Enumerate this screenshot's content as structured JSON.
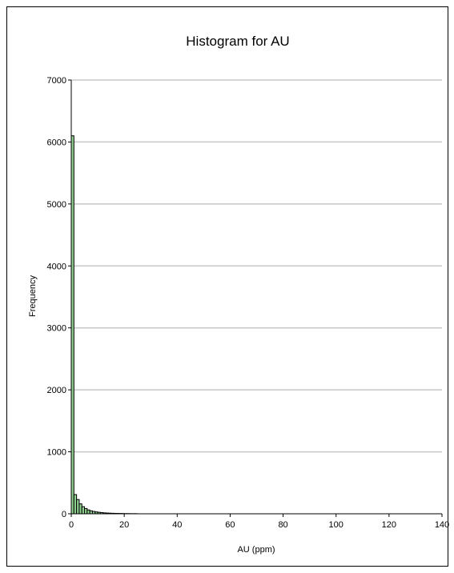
{
  "chart_data": {
    "type": "bar",
    "title": "Histogram for AU",
    "xlabel": "AU (ppm)",
    "ylabel": "Frequency",
    "xlim": [
      0,
      140
    ],
    "ylim": [
      0,
      7000
    ],
    "x_ticks": [
      0,
      20,
      40,
      60,
      80,
      100,
      120,
      140
    ],
    "y_ticks": [
      0,
      1000,
      2000,
      3000,
      4000,
      5000,
      6000,
      7000
    ],
    "grid": "horizontal",
    "legend": "none",
    "bin_width": 1,
    "bins": [
      {
        "x0": 0,
        "x1": 1,
        "count": 6100
      },
      {
        "x0": 1,
        "x1": 2,
        "count": 310
      },
      {
        "x0": 2,
        "x1": 3,
        "count": 230
      },
      {
        "x0": 3,
        "x1": 4,
        "count": 160
      },
      {
        "x0": 4,
        "x1": 5,
        "count": 115
      },
      {
        "x0": 5,
        "x1": 6,
        "count": 85
      },
      {
        "x0": 6,
        "x1": 7,
        "count": 62
      },
      {
        "x0": 7,
        "x1": 8,
        "count": 48
      },
      {
        "x0": 8,
        "x1": 9,
        "count": 38
      },
      {
        "x0": 9,
        "x1": 10,
        "count": 30
      },
      {
        "x0": 10,
        "x1": 11,
        "count": 24
      },
      {
        "x0": 11,
        "x1": 12,
        "count": 19
      },
      {
        "x0": 12,
        "x1": 13,
        "count": 15
      },
      {
        "x0": 13,
        "x1": 14,
        "count": 12
      },
      {
        "x0": 14,
        "x1": 15,
        "count": 10
      },
      {
        "x0": 15,
        "x1": 16,
        "count": 8
      },
      {
        "x0": 16,
        "x1": 17,
        "count": 7
      },
      {
        "x0": 17,
        "x1": 18,
        "count": 6
      },
      {
        "x0": 18,
        "x1": 19,
        "count": 5
      },
      {
        "x0": 19,
        "x1": 20,
        "count": 4
      },
      {
        "x0": 20,
        "x1": 21,
        "count": 3
      },
      {
        "x0": 21,
        "x1": 22,
        "count": 3
      },
      {
        "x0": 22,
        "x1": 23,
        "count": 2
      },
      {
        "x0": 23,
        "x1": 24,
        "count": 2
      },
      {
        "x0": 24,
        "x1": 25,
        "count": 2
      }
    ],
    "colors": {
      "bar_fill": "#8fd18f",
      "bar_stroke": "#000000",
      "grid": "#c8c8c8",
      "axis": "#000000"
    }
  }
}
